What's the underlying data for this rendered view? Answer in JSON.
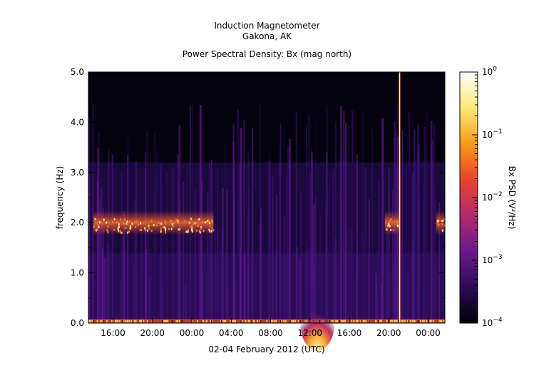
{
  "header": {
    "title_line1": "Induction Magnetometer",
    "title_line2": "Gakona, AK",
    "subtitle": "Power Spectral Density: Bx (mag north)"
  },
  "chart_data": {
    "type": "heatmap",
    "title": "Induction Magnetometer Gakona, AK",
    "subtitle": "Power Spectral Density: Bx (mag north)",
    "xlabel": "02-04 February 2012 (UTC)",
    "ylabel": "frequency (Hz)",
    "ylim": [
      0,
      5.0
    ],
    "xlim_hours": [
      13.5,
      49.7
    ],
    "x_ticks": [
      {
        "label": "16:00",
        "hour": 16
      },
      {
        "label": "20:00",
        "hour": 20
      },
      {
        "label": "00:00",
        "hour": 24
      },
      {
        "label": "04:00",
        "hour": 28
      },
      {
        "label": "08:00",
        "hour": 32
      },
      {
        "label": "12:00",
        "hour": 36
      },
      {
        "label": "16:00",
        "hour": 40
      },
      {
        "label": "20:00",
        "hour": 44
      },
      {
        "label": "00:00",
        "hour": 48
      }
    ],
    "y_ticks": [
      {
        "label": "0.0",
        "value": 0.0
      },
      {
        "label": "1.0",
        "value": 1.0
      },
      {
        "label": "2.0",
        "value": 2.0
      },
      {
        "label": "3.0",
        "value": 3.0
      },
      {
        "label": "4.0",
        "value": 4.0
      },
      {
        "label": "5.0",
        "value": 5.0
      }
    ],
    "colorbar": {
      "label": "Bx PSD (V²/Hz)",
      "scale": "log",
      "range": [
        0.0001,
        1
      ],
      "ticks": [
        {
          "base": "10",
          "exp": "0",
          "value": 1
        },
        {
          "base": "10",
          "exp": "−1",
          "value": 0.1
        },
        {
          "base": "10",
          "exp": "−2",
          "value": 0.01
        },
        {
          "base": "10",
          "exp": "−3",
          "value": 0.001
        },
        {
          "base": "10",
          "exp": "−4",
          "value": 0.0001
        }
      ],
      "colors": [
        "#000004",
        "#2c0b57",
        "#6a1a8a",
        "#b32a6f",
        "#e8432b",
        "#f99b1a",
        "#fbe97a",
        "#ffffff"
      ]
    },
    "features": {
      "band_freq_hz": 2.0,
      "band_active_hours": [
        [
          14.0,
          26.2
        ],
        [
          43.6,
          45.0
        ],
        [
          48.8,
          49.7
        ]
      ],
      "low_freq_enhancement_hours": [
        35.0,
        38.5
      ],
      "broadband_spike_hour": 45.1
    }
  }
}
